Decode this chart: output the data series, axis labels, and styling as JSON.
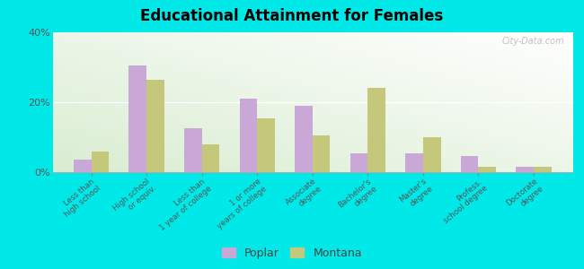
{
  "title": "Educational Attainment for Females",
  "categories": [
    "Less than\nhigh school",
    "High school\nor equiv.",
    "Less than\n1 year of college",
    "1 or more\nyears of college",
    "Associate\ndegree",
    "Bachelor's\ndegree",
    "Master's\ndegree",
    "Profess.\nschool degree",
    "Doctorate\ndegree"
  ],
  "poplar": [
    3.5,
    30.5,
    12.5,
    21.0,
    19.0,
    5.5,
    5.5,
    4.5,
    1.5
  ],
  "montana": [
    6.0,
    26.5,
    8.0,
    15.5,
    10.5,
    24.0,
    10.0,
    1.5,
    1.5
  ],
  "poplar_color": "#c9a8d8",
  "montana_color": "#c5c87a",
  "outer_background": "#00e8e8",
  "ylim": [
    0,
    40
  ],
  "yticks": [
    0,
    20,
    40
  ],
  "ytick_labels": [
    "0%",
    "20%",
    "40%"
  ],
  "legend_labels": [
    "Poplar",
    "Montana"
  ],
  "watermark": "City-Data.com"
}
